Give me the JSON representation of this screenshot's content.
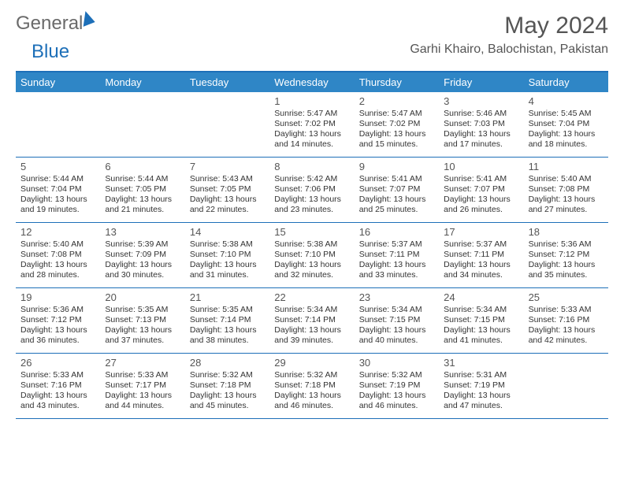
{
  "logo": {
    "part1": "General",
    "part2": "Blue"
  },
  "title": "May 2024",
  "subtitle": "Garhi Khairo, Balochistan, Pakistan",
  "colors": {
    "header_bg": "#2f86c6",
    "header_text": "#ffffff",
    "border": "#1d6fb8",
    "logo_gray": "#6a6a6a",
    "logo_blue": "#1d6fb8",
    "text": "#333333",
    "title_text": "#555555"
  },
  "layout": {
    "columns": 7,
    "rows": 5,
    "cell_fontsize_daynum": 13,
    "cell_fontsize_detail": 10.5,
    "header_fontsize": 13
  },
  "days_of_week": [
    "Sunday",
    "Monday",
    "Tuesday",
    "Wednesday",
    "Thursday",
    "Friday",
    "Saturday"
  ],
  "weeks": [
    [
      null,
      null,
      null,
      {
        "n": "1",
        "sr": "5:47 AM",
        "ss": "7:02 PM",
        "dl": "13 hours and 14 minutes."
      },
      {
        "n": "2",
        "sr": "5:47 AM",
        "ss": "7:02 PM",
        "dl": "13 hours and 15 minutes."
      },
      {
        "n": "3",
        "sr": "5:46 AM",
        "ss": "7:03 PM",
        "dl": "13 hours and 17 minutes."
      },
      {
        "n": "4",
        "sr": "5:45 AM",
        "ss": "7:04 PM",
        "dl": "13 hours and 18 minutes."
      }
    ],
    [
      {
        "n": "5",
        "sr": "5:44 AM",
        "ss": "7:04 PM",
        "dl": "13 hours and 19 minutes."
      },
      {
        "n": "6",
        "sr": "5:44 AM",
        "ss": "7:05 PM",
        "dl": "13 hours and 21 minutes."
      },
      {
        "n": "7",
        "sr": "5:43 AM",
        "ss": "7:05 PM",
        "dl": "13 hours and 22 minutes."
      },
      {
        "n": "8",
        "sr": "5:42 AM",
        "ss": "7:06 PM",
        "dl": "13 hours and 23 minutes."
      },
      {
        "n": "9",
        "sr": "5:41 AM",
        "ss": "7:07 PM",
        "dl": "13 hours and 25 minutes."
      },
      {
        "n": "10",
        "sr": "5:41 AM",
        "ss": "7:07 PM",
        "dl": "13 hours and 26 minutes."
      },
      {
        "n": "11",
        "sr": "5:40 AM",
        "ss": "7:08 PM",
        "dl": "13 hours and 27 minutes."
      }
    ],
    [
      {
        "n": "12",
        "sr": "5:40 AM",
        "ss": "7:08 PM",
        "dl": "13 hours and 28 minutes."
      },
      {
        "n": "13",
        "sr": "5:39 AM",
        "ss": "7:09 PM",
        "dl": "13 hours and 30 minutes."
      },
      {
        "n": "14",
        "sr": "5:38 AM",
        "ss": "7:10 PM",
        "dl": "13 hours and 31 minutes."
      },
      {
        "n": "15",
        "sr": "5:38 AM",
        "ss": "7:10 PM",
        "dl": "13 hours and 32 minutes."
      },
      {
        "n": "16",
        "sr": "5:37 AM",
        "ss": "7:11 PM",
        "dl": "13 hours and 33 minutes."
      },
      {
        "n": "17",
        "sr": "5:37 AM",
        "ss": "7:11 PM",
        "dl": "13 hours and 34 minutes."
      },
      {
        "n": "18",
        "sr": "5:36 AM",
        "ss": "7:12 PM",
        "dl": "13 hours and 35 minutes."
      }
    ],
    [
      {
        "n": "19",
        "sr": "5:36 AM",
        "ss": "7:12 PM",
        "dl": "13 hours and 36 minutes."
      },
      {
        "n": "20",
        "sr": "5:35 AM",
        "ss": "7:13 PM",
        "dl": "13 hours and 37 minutes."
      },
      {
        "n": "21",
        "sr": "5:35 AM",
        "ss": "7:14 PM",
        "dl": "13 hours and 38 minutes."
      },
      {
        "n": "22",
        "sr": "5:34 AM",
        "ss": "7:14 PM",
        "dl": "13 hours and 39 minutes."
      },
      {
        "n": "23",
        "sr": "5:34 AM",
        "ss": "7:15 PM",
        "dl": "13 hours and 40 minutes."
      },
      {
        "n": "24",
        "sr": "5:34 AM",
        "ss": "7:15 PM",
        "dl": "13 hours and 41 minutes."
      },
      {
        "n": "25",
        "sr": "5:33 AM",
        "ss": "7:16 PM",
        "dl": "13 hours and 42 minutes."
      }
    ],
    [
      {
        "n": "26",
        "sr": "5:33 AM",
        "ss": "7:16 PM",
        "dl": "13 hours and 43 minutes."
      },
      {
        "n": "27",
        "sr": "5:33 AM",
        "ss": "7:17 PM",
        "dl": "13 hours and 44 minutes."
      },
      {
        "n": "28",
        "sr": "5:32 AM",
        "ss": "7:18 PM",
        "dl": "13 hours and 45 minutes."
      },
      {
        "n": "29",
        "sr": "5:32 AM",
        "ss": "7:18 PM",
        "dl": "13 hours and 46 minutes."
      },
      {
        "n": "30",
        "sr": "5:32 AM",
        "ss": "7:19 PM",
        "dl": "13 hours and 46 minutes."
      },
      {
        "n": "31",
        "sr": "5:31 AM",
        "ss": "7:19 PM",
        "dl": "13 hours and 47 minutes."
      },
      null
    ]
  ],
  "labels": {
    "sunrise": "Sunrise: ",
    "sunset": "Sunset: ",
    "daylight": "Daylight: "
  }
}
